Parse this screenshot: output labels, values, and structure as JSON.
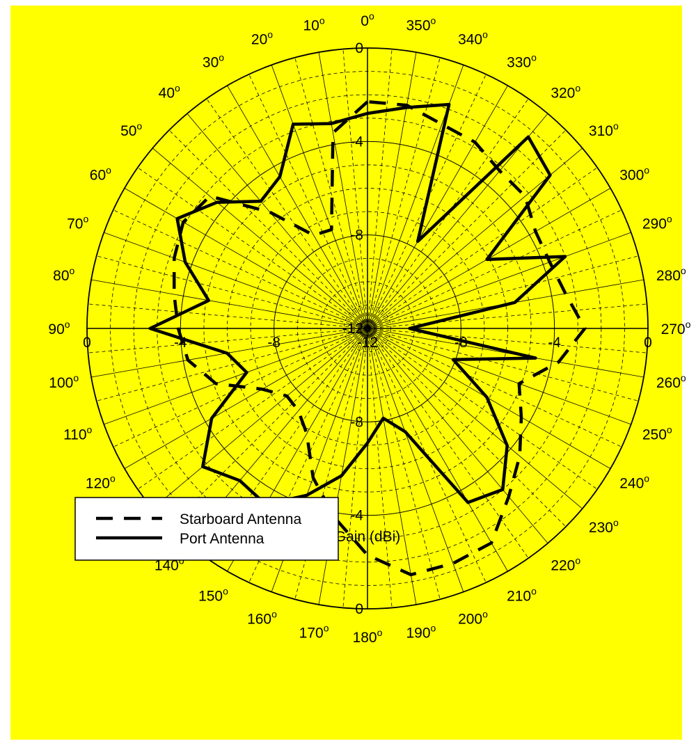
{
  "chart_data": {
    "type": "line",
    "subtype": "polar",
    "xlabel": "Gain (dBi)",
    "background_color": "#ffff00",
    "line_color": "#000000",
    "grid": true,
    "angle_direction": "counterclockwise",
    "zero_angle_position": "top",
    "radial_range": [
      -12,
      0
    ],
    "radial_ticks": [
      "-12",
      "-8",
      "-4",
      "0"
    ],
    "radial_tick_values": [
      -12,
      -8,
      -4,
      0
    ],
    "angle_ticks": [
      0,
      10,
      20,
      30,
      40,
      50,
      60,
      70,
      80,
      90,
      100,
      110,
      120,
      130,
      140,
      150,
      160,
      170,
      180,
      190,
      200,
      210,
      220,
      230,
      240,
      250,
      260,
      270,
      280,
      290,
      300,
      310,
      320,
      330,
      340,
      350
    ],
    "angle_tick_labels": [
      "0",
      "10",
      "20",
      "30",
      "40",
      "50",
      "60",
      "70",
      "80",
      "90",
      "100",
      "110",
      "120",
      "130",
      "140",
      "150",
      "160",
      "170",
      "180",
      "190",
      "200",
      "210",
      "220",
      "230",
      "240",
      "250",
      "260",
      "270",
      "280",
      "290",
      "300",
      "310",
      "320",
      "330",
      "340",
      "350"
    ],
    "degree_symbol": "o",
    "legend_position": "bottom-left",
    "series": [
      {
        "name": "Starboard Antenna",
        "style": "dashed",
        "angles": [
          0,
          10,
          20,
          30,
          40,
          50,
          60,
          70,
          80,
          90,
          100,
          110,
          120,
          130,
          140,
          150,
          160,
          170,
          180,
          190,
          200,
          210,
          220,
          230,
          240,
          250,
          260,
          270,
          280,
          290,
          300,
          310,
          320,
          330,
          340,
          350
        ],
        "values": [
          -2.3,
          -3.5,
          -7.5,
          -7.4,
          -5.5,
          -3.2,
          -2.9,
          -3.2,
          -3.6,
          -3.9,
          -4.2,
          -5.1,
          -6.8,
          -7.5,
          -7.4,
          -6.8,
          -5.2,
          -3.8,
          -2.3,
          -1.3,
          -1.3,
          -1.4,
          -2.6,
          -3.5,
          -4.4,
          -5.1,
          -3.7,
          -2.7,
          -3.4,
          -3.7,
          -3.7,
          -3.2,
          -3.2,
          -2.8,
          -2.7,
          -2.3
        ]
      },
      {
        "name": "Port Antenna",
        "style": "solid",
        "angles": [
          0,
          10,
          20,
          30,
          40,
          50,
          60,
          70,
          80,
          90,
          100,
          110,
          120,
          130,
          140,
          150,
          160,
          170,
          180,
          190,
          200,
          210,
          220,
          230,
          240,
          250,
          260,
          270,
          280,
          290,
          300,
          310,
          320,
          330,
          340,
          350
        ],
        "values": [
          -2.8,
          -3.1,
          -2.7,
          -4.5,
          -4.9,
          -3.6,
          -2.6,
          -3.7,
          -5.1,
          -2.7,
          -5.9,
          -6.5,
          -4.3,
          -2.8,
          -3.5,
          -3.3,
          -4.4,
          -5.6,
          -7.1,
          -8.1,
          -7.3,
          -3.4,
          -3.0,
          -4.2,
          -6.1,
          -8.1,
          -4.7,
          -10.2,
          -5.6,
          -3.0,
          -6.1,
          -1.8,
          -1.3,
          -7.7,
          -1.8,
          -2.4
        ]
      }
    ]
  }
}
